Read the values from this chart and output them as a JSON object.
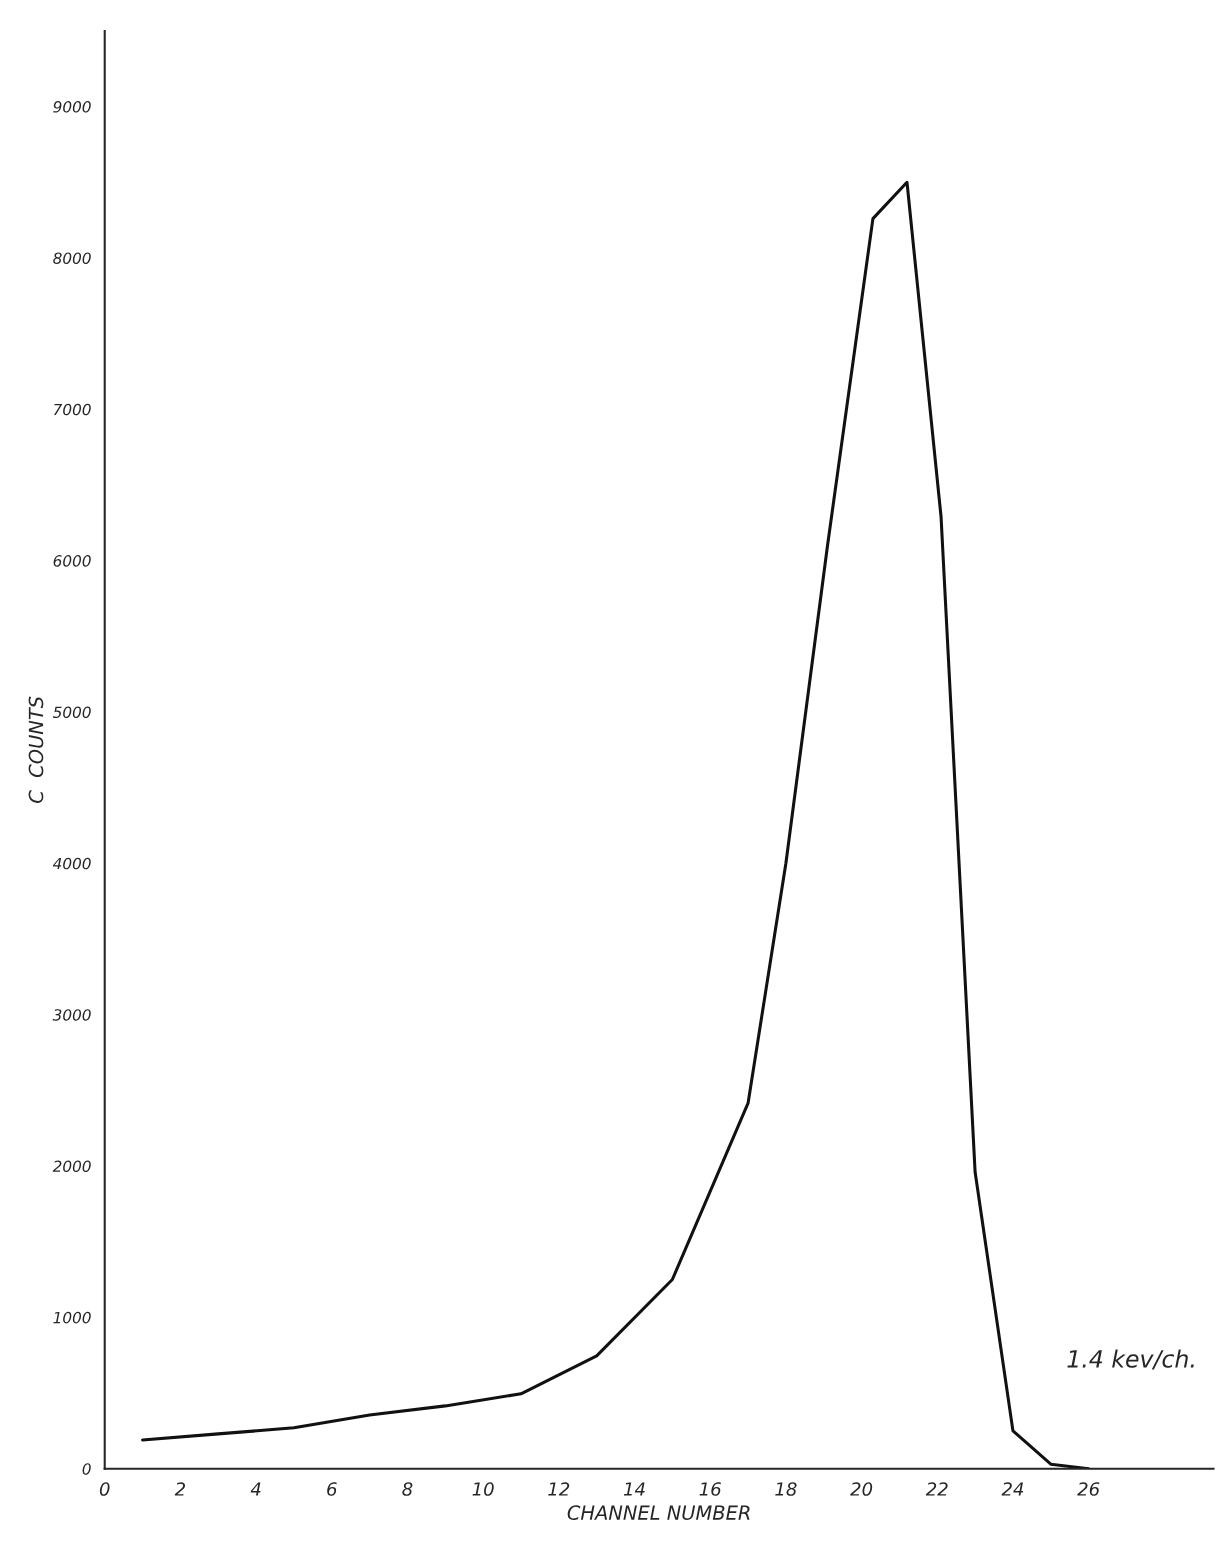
{
  "chart_data": {
    "type": "line",
    "xlabel": "CHANNEL NUMBER",
    "ylabel": "C  COUNTS",
    "annotations": [
      "1.4 kev/ch."
    ],
    "xlim": [
      0,
      29.3
    ],
    "ylim": [
      0,
      9500
    ],
    "xticks": [
      0,
      2,
      4,
      6,
      8,
      10,
      12,
      14,
      16,
      18,
      20,
      22,
      24,
      26
    ],
    "yticks": [
      0,
      1000,
      2000,
      3000,
      4000,
      5000,
      6000,
      7000,
      8000,
      9000
    ],
    "grid": false,
    "marker": "none",
    "line_style": "solid",
    "series": [
      {
        "color": "#111111",
        "x": [
          1,
          3,
          5,
          7,
          9,
          11,
          13,
          15,
          17,
          18,
          19.1,
          20.3,
          21.2,
          22.1,
          23,
          24,
          25,
          26
        ],
        "values": [
          190,
          230,
          270,
          355,
          415,
          495,
          745,
          1250,
          2415,
          4000,
          6100,
          8260,
          8500,
          6290,
          1960,
          250,
          30,
          0
        ]
      }
    ]
  }
}
